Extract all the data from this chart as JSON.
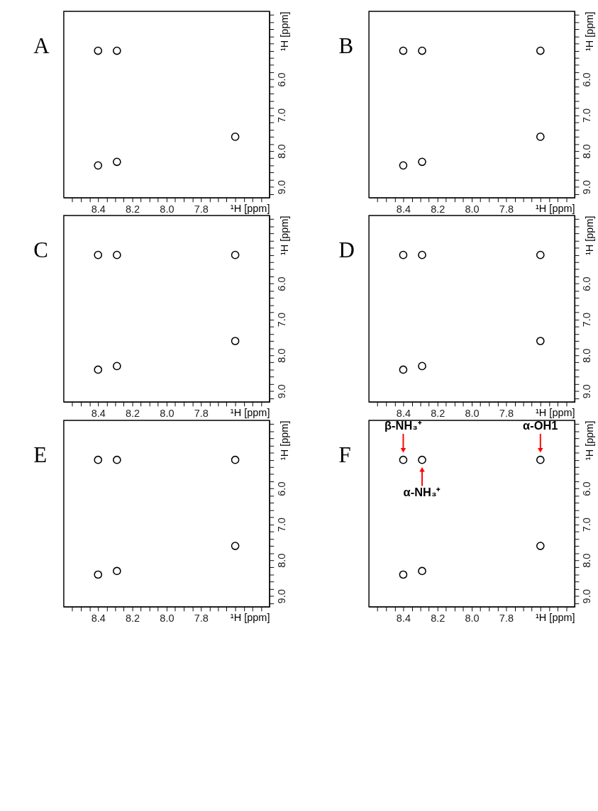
{
  "chart_data": [
    {
      "type": "scatter",
      "title": "A",
      "xlabel": "¹H [ppm]",
      "ylabel": "¹H [ppm]",
      "marker": "circle",
      "grid": false,
      "legend": false,
      "xlim": [
        8.6,
        7.4
      ],
      "ylim": [
        9.3,
        4.1
      ],
      "xticks": [
        {
          "value": 8.55,
          "label": null
        },
        {
          "value": 8.5,
          "label": null
        },
        {
          "value": 8.45,
          "label": null
        },
        8.4,
        {
          "value": 8.35,
          "label": null
        },
        {
          "value": 8.3,
          "label": null
        },
        {
          "value": 8.25,
          "label": null
        },
        8.2,
        {
          "value": 8.15,
          "label": null
        },
        {
          "value": 8.1,
          "label": null
        },
        {
          "value": 8.05,
          "label": null
        },
        {
          "value": 8,
          "label": "8.0"
        },
        {
          "value": 7.95,
          "label": null
        },
        {
          "value": 7.9,
          "label": null
        },
        {
          "value": 7.85,
          "label": null
        },
        7.8,
        {
          "value": 7.75,
          "label": null
        },
        {
          "value": 7.7,
          "label": null
        },
        {
          "value": 7.65,
          "label": null
        },
        {
          "value": 7.6,
          "label": null
        },
        {
          "value": 7.55,
          "label": null
        },
        {
          "value": 7.5,
          "label": null
        },
        {
          "value": 7.45,
          "label": null
        }
      ],
      "yticks": [
        {
          "value": 4.2,
          "label": null
        },
        {
          "value": 4.4,
          "label": null
        },
        {
          "value": 4.6,
          "label": null
        },
        {
          "value": 4.8,
          "label": null
        },
        {
          "value": 5,
          "label": null
        },
        {
          "value": 5.2,
          "label": null
        },
        {
          "value": 5.4,
          "label": null
        },
        {
          "value": 5.6,
          "label": null
        },
        {
          "value": 5.8,
          "label": null
        },
        {
          "value": 6,
          "label": "6.0"
        },
        {
          "value": 6.2,
          "label": null
        },
        {
          "value": 6.4,
          "label": null
        },
        {
          "value": 6.6,
          "label": null
        },
        {
          "value": 6.8,
          "label": null
        },
        {
          "value": 7,
          "label": "7.0"
        },
        {
          "value": 7.2,
          "label": null
        },
        {
          "value": 7.4,
          "label": null
        },
        {
          "value": 7.6,
          "label": null
        },
        {
          "value": 7.8,
          "label": null
        },
        {
          "value": 8,
          "label": "8.0"
        },
        {
          "value": 8.2,
          "label": null
        },
        {
          "value": 8.4,
          "label": null
        },
        {
          "value": 8.6,
          "label": null
        },
        {
          "value": 8.8,
          "label": null
        },
        {
          "value": 9,
          "label": "9.0"
        },
        {
          "value": 9.2,
          "label": null
        }
      ],
      "series": [
        {
          "color": "#000000",
          "x": [
            8.4,
            8.29,
            7.6,
            8.4,
            8.29
          ],
          "values": [
            5.2,
            5.2,
            7.6,
            8.4,
            8.3
          ]
        }
      ]
    },
    {
      "type": "scatter",
      "title": "B",
      "xlabel": "¹H [ppm]",
      "ylabel": "¹H [ppm]",
      "marker": "circle",
      "grid": false,
      "legend": false,
      "xlim": [
        8.6,
        7.4
      ],
      "ylim": [
        9.3,
        4.1
      ],
      "xticks": [
        {
          "value": 8.55,
          "label": null
        },
        {
          "value": 8.5,
          "label": null
        },
        {
          "value": 8.45,
          "label": null
        },
        8.4,
        {
          "value": 8.35,
          "label": null
        },
        {
          "value": 8.3,
          "label": null
        },
        {
          "value": 8.25,
          "label": null
        },
        8.2,
        {
          "value": 8.15,
          "label": null
        },
        {
          "value": 8.1,
          "label": null
        },
        {
          "value": 8.05,
          "label": null
        },
        {
          "value": 8,
          "label": "8.0"
        },
        {
          "value": 7.95,
          "label": null
        },
        {
          "value": 7.9,
          "label": null
        },
        {
          "value": 7.85,
          "label": null
        },
        7.8,
        {
          "value": 7.75,
          "label": null
        },
        {
          "value": 7.7,
          "label": null
        },
        {
          "value": 7.65,
          "label": null
        },
        {
          "value": 7.6,
          "label": null
        },
        {
          "value": 7.55,
          "label": null
        },
        {
          "value": 7.5,
          "label": null
        },
        {
          "value": 7.45,
          "label": null
        }
      ],
      "yticks": [
        {
          "value": 4.2,
          "label": null
        },
        {
          "value": 4.4,
          "label": null
        },
        {
          "value": 4.6,
          "label": null
        },
        {
          "value": 4.8,
          "label": null
        },
        {
          "value": 5,
          "label": null
        },
        {
          "value": 5.2,
          "label": null
        },
        {
          "value": 5.4,
          "label": null
        },
        {
          "value": 5.6,
          "label": null
        },
        {
          "value": 5.8,
          "label": null
        },
        {
          "value": 6,
          "label": "6.0"
        },
        {
          "value": 6.2,
          "label": null
        },
        {
          "value": 6.4,
          "label": null
        },
        {
          "value": 6.6,
          "label": null
        },
        {
          "value": 6.8,
          "label": null
        },
        {
          "value": 7,
          "label": "7.0"
        },
        {
          "value": 7.2,
          "label": null
        },
        {
          "value": 7.4,
          "label": null
        },
        {
          "value": 7.6,
          "label": null
        },
        {
          "value": 7.8,
          "label": null
        },
        {
          "value": 8,
          "label": "8.0"
        },
        {
          "value": 8.2,
          "label": null
        },
        {
          "value": 8.4,
          "label": null
        },
        {
          "value": 8.6,
          "label": null
        },
        {
          "value": 8.8,
          "label": null
        },
        {
          "value": 9,
          "label": "9.0"
        },
        {
          "value": 9.2,
          "label": null
        }
      ],
      "series": [
        {
          "color": "#000000",
          "x": [
            8.4,
            8.29,
            7.6,
            7.6,
            8.4,
            8.29
          ],
          "values": [
            5.2,
            5.2,
            5.2,
            7.6,
            8.4,
            8.3
          ]
        }
      ]
    },
    {
      "type": "scatter",
      "title": "C",
      "xlabel": "¹H [ppm]",
      "ylabel": "¹H [ppm]",
      "marker": "circle",
      "grid": false,
      "legend": false,
      "xlim": [
        8.6,
        7.4
      ],
      "ylim": [
        9.3,
        4.1
      ],
      "xticks": [
        {
          "value": 8.55,
          "label": null
        },
        {
          "value": 8.5,
          "label": null
        },
        {
          "value": 8.45,
          "label": null
        },
        8.4,
        {
          "value": 8.35,
          "label": null
        },
        {
          "value": 8.3,
          "label": null
        },
        {
          "value": 8.25,
          "label": null
        },
        8.2,
        {
          "value": 8.15,
          "label": null
        },
        {
          "value": 8.1,
          "label": null
        },
        {
          "value": 8.05,
          "label": null
        },
        {
          "value": 8,
          "label": "8.0"
        },
        {
          "value": 7.95,
          "label": null
        },
        {
          "value": 7.9,
          "label": null
        },
        {
          "value": 7.85,
          "label": null
        },
        7.8,
        {
          "value": 7.75,
          "label": null
        },
        {
          "value": 7.7,
          "label": null
        },
        {
          "value": 7.65,
          "label": null
        },
        {
          "value": 7.6,
          "label": null
        },
        {
          "value": 7.55,
          "label": null
        },
        {
          "value": 7.5,
          "label": null
        },
        {
          "value": 7.45,
          "label": null
        }
      ],
      "yticks": [
        {
          "value": 4.2,
          "label": null
        },
        {
          "value": 4.4,
          "label": null
        },
        {
          "value": 4.6,
          "label": null
        },
        {
          "value": 4.8,
          "label": null
        },
        {
          "value": 5,
          "label": null
        },
        {
          "value": 5.2,
          "label": null
        },
        {
          "value": 5.4,
          "label": null
        },
        {
          "value": 5.6,
          "label": null
        },
        {
          "value": 5.8,
          "label": null
        },
        {
          "value": 6,
          "label": "6.0"
        },
        {
          "value": 6.2,
          "label": null
        },
        {
          "value": 6.4,
          "label": null
        },
        {
          "value": 6.6,
          "label": null
        },
        {
          "value": 6.8,
          "label": null
        },
        {
          "value": 7,
          "label": "7.0"
        },
        {
          "value": 7.2,
          "label": null
        },
        {
          "value": 7.4,
          "label": null
        },
        {
          "value": 7.6,
          "label": null
        },
        {
          "value": 7.8,
          "label": null
        },
        {
          "value": 8,
          "label": "8.0"
        },
        {
          "value": 8.2,
          "label": null
        },
        {
          "value": 8.4,
          "label": null
        },
        {
          "value": 8.6,
          "label": null
        },
        {
          "value": 8.8,
          "label": null
        },
        {
          "value": 9,
          "label": "9.0"
        },
        {
          "value": 9.2,
          "label": null
        }
      ],
      "series": [
        {
          "color": "#000000",
          "x": [
            8.4,
            8.29,
            7.6,
            7.6,
            8.4,
            8.29
          ],
          "values": [
            5.2,
            5.2,
            5.2,
            7.6,
            8.4,
            8.3
          ]
        }
      ]
    },
    {
      "type": "scatter",
      "title": "D",
      "xlabel": "¹H [ppm]",
      "ylabel": "¹H [ppm]",
      "marker": "circle",
      "grid": false,
      "legend": false,
      "xlim": [
        8.6,
        7.4
      ],
      "ylim": [
        9.3,
        4.1
      ],
      "xticks": [
        {
          "value": 8.55,
          "label": null
        },
        {
          "value": 8.5,
          "label": null
        },
        {
          "value": 8.45,
          "label": null
        },
        8.4,
        {
          "value": 8.35,
          "label": null
        },
        {
          "value": 8.3,
          "label": null
        },
        {
          "value": 8.25,
          "label": null
        },
        8.2,
        {
          "value": 8.15,
          "label": null
        },
        {
          "value": 8.1,
          "label": null
        },
        {
          "value": 8.05,
          "label": null
        },
        {
          "value": 8,
          "label": "8.0"
        },
        {
          "value": 7.95,
          "label": null
        },
        {
          "value": 7.9,
          "label": null
        },
        {
          "value": 7.85,
          "label": null
        },
        7.8,
        {
          "value": 7.75,
          "label": null
        },
        {
          "value": 7.7,
          "label": null
        },
        {
          "value": 7.65,
          "label": null
        },
        {
          "value": 7.6,
          "label": null
        },
        {
          "value": 7.55,
          "label": null
        },
        {
          "value": 7.5,
          "label": null
        },
        {
          "value": 7.45,
          "label": null
        }
      ],
      "yticks": [
        {
          "value": 4.2,
          "label": null
        },
        {
          "value": 4.4,
          "label": null
        },
        {
          "value": 4.6,
          "label": null
        },
        {
          "value": 4.8,
          "label": null
        },
        {
          "value": 5,
          "label": null
        },
        {
          "value": 5.2,
          "label": null
        },
        {
          "value": 5.4,
          "label": null
        },
        {
          "value": 5.6,
          "label": null
        },
        {
          "value": 5.8,
          "label": null
        },
        {
          "value": 6,
          "label": "6.0"
        },
        {
          "value": 6.2,
          "label": null
        },
        {
          "value": 6.4,
          "label": null
        },
        {
          "value": 6.6,
          "label": null
        },
        {
          "value": 6.8,
          "label": null
        },
        {
          "value": 7,
          "label": "7.0"
        },
        {
          "value": 7.2,
          "label": null
        },
        {
          "value": 7.4,
          "label": null
        },
        {
          "value": 7.6,
          "label": null
        },
        {
          "value": 7.8,
          "label": null
        },
        {
          "value": 8,
          "label": "8.0"
        },
        {
          "value": 8.2,
          "label": null
        },
        {
          "value": 8.4,
          "label": null
        },
        {
          "value": 8.6,
          "label": null
        },
        {
          "value": 8.8,
          "label": null
        },
        {
          "value": 9,
          "label": "9.0"
        },
        {
          "value": 9.2,
          "label": null
        }
      ],
      "series": [
        {
          "color": "#000000",
          "x": [
            8.4,
            8.29,
            7.6,
            7.6,
            8.4,
            8.29
          ],
          "values": [
            5.2,
            5.2,
            5.2,
            7.6,
            8.4,
            8.3
          ]
        }
      ]
    },
    {
      "type": "scatter",
      "title": "E",
      "xlabel": "¹H [ppm]",
      "ylabel": "¹H [ppm]",
      "marker": "circle",
      "grid": false,
      "legend": false,
      "xlim": [
        8.6,
        7.4
      ],
      "ylim": [
        9.3,
        4.1
      ],
      "xticks": [
        {
          "value": 8.55,
          "label": null
        },
        {
          "value": 8.5,
          "label": null
        },
        {
          "value": 8.45,
          "label": null
        },
        8.4,
        {
          "value": 8.35,
          "label": null
        },
        {
          "value": 8.3,
          "label": null
        },
        {
          "value": 8.25,
          "label": null
        },
        8.2,
        {
          "value": 8.15,
          "label": null
        },
        {
          "value": 8.1,
          "label": null
        },
        {
          "value": 8.05,
          "label": null
        },
        {
          "value": 8,
          "label": "8.0"
        },
        {
          "value": 7.95,
          "label": null
        },
        {
          "value": 7.9,
          "label": null
        },
        {
          "value": 7.85,
          "label": null
        },
        7.8,
        {
          "value": 7.75,
          "label": null
        },
        {
          "value": 7.7,
          "label": null
        },
        {
          "value": 7.65,
          "label": null
        },
        {
          "value": 7.6,
          "label": null
        },
        {
          "value": 7.55,
          "label": null
        },
        {
          "value": 7.5,
          "label": null
        },
        {
          "value": 7.45,
          "label": null
        }
      ],
      "yticks": [
        {
          "value": 4.2,
          "label": null
        },
        {
          "value": 4.4,
          "label": null
        },
        {
          "value": 4.6,
          "label": null
        },
        {
          "value": 4.8,
          "label": null
        },
        {
          "value": 5,
          "label": null
        },
        {
          "value": 5.2,
          "label": null
        },
        {
          "value": 5.4,
          "label": null
        },
        {
          "value": 5.6,
          "label": null
        },
        {
          "value": 5.8,
          "label": null
        },
        {
          "value": 6,
          "label": "6.0"
        },
        {
          "value": 6.2,
          "label": null
        },
        {
          "value": 6.4,
          "label": null
        },
        {
          "value": 6.6,
          "label": null
        },
        {
          "value": 6.8,
          "label": null
        },
        {
          "value": 7,
          "label": "7.0"
        },
        {
          "value": 7.2,
          "label": null
        },
        {
          "value": 7.4,
          "label": null
        },
        {
          "value": 7.6,
          "label": null
        },
        {
          "value": 7.8,
          "label": null
        },
        {
          "value": 8,
          "label": "8.0"
        },
        {
          "value": 8.2,
          "label": null
        },
        {
          "value": 8.4,
          "label": null
        },
        {
          "value": 8.6,
          "label": null
        },
        {
          "value": 8.8,
          "label": null
        },
        {
          "value": 9,
          "label": "9.0"
        },
        {
          "value": 9.2,
          "label": null
        }
      ],
      "series": [
        {
          "color": "#000000",
          "x": [
            8.4,
            8.29,
            7.6,
            7.6,
            8.4,
            8.29
          ],
          "values": [
            5.2,
            5.2,
            5.2,
            7.6,
            8.4,
            8.3
          ]
        }
      ]
    },
    {
      "type": "scatter",
      "title": "F",
      "xlabel": "¹H [ppm]",
      "ylabel": "¹H [ppm]",
      "marker": "circle",
      "grid": false,
      "legend": false,
      "xlim": [
        8.6,
        7.4
      ],
      "ylim": [
        9.3,
        4.1
      ],
      "xticks": [
        {
          "value": 8.55,
          "label": null
        },
        {
          "value": 8.5,
          "label": null
        },
        {
          "value": 8.45,
          "label": null
        },
        8.4,
        {
          "value": 8.35,
          "label": null
        },
        {
          "value": 8.3,
          "label": null
        },
        {
          "value": 8.25,
          "label": null
        },
        8.2,
        {
          "value": 8.15,
          "label": null
        },
        {
          "value": 8.1,
          "label": null
        },
        {
          "value": 8.05,
          "label": null
        },
        {
          "value": 8,
          "label": "8.0"
        },
        {
          "value": 7.95,
          "label": null
        },
        {
          "value": 7.9,
          "label": null
        },
        {
          "value": 7.85,
          "label": null
        },
        7.8,
        {
          "value": 7.75,
          "label": null
        },
        {
          "value": 7.7,
          "label": null
        },
        {
          "value": 7.65,
          "label": null
        },
        {
          "value": 7.6,
          "label": null
        },
        {
          "value": 7.55,
          "label": null
        },
        {
          "value": 7.5,
          "label": null
        },
        {
          "value": 7.45,
          "label": null
        }
      ],
      "yticks": [
        {
          "value": 4.2,
          "label": null
        },
        {
          "value": 4.4,
          "label": null
        },
        {
          "value": 4.6,
          "label": null
        },
        {
          "value": 4.8,
          "label": null
        },
        {
          "value": 5,
          "label": null
        },
        {
          "value": 5.2,
          "label": null
        },
        {
          "value": 5.4,
          "label": null
        },
        {
          "value": 5.6,
          "label": null
        },
        {
          "value": 5.8,
          "label": null
        },
        {
          "value": 6,
          "label": "6.0"
        },
        {
          "value": 6.2,
          "label": null
        },
        {
          "value": 6.4,
          "label": null
        },
        {
          "value": 6.6,
          "label": null
        },
        {
          "value": 6.8,
          "label": null
        },
        {
          "value": 7,
          "label": "7.0"
        },
        {
          "value": 7.2,
          "label": null
        },
        {
          "value": 7.4,
          "label": null
        },
        {
          "value": 7.6,
          "label": null
        },
        {
          "value": 7.8,
          "label": null
        },
        {
          "value": 8,
          "label": "8.0"
        },
        {
          "value": 8.2,
          "label": null
        },
        {
          "value": 8.4,
          "label": null
        },
        {
          "value": 8.6,
          "label": null
        },
        {
          "value": 8.8,
          "label": null
        },
        {
          "value": 9,
          "label": "9.0"
        },
        {
          "value": 9.2,
          "label": null
        }
      ],
      "series": [
        {
          "color": "#000000",
          "x": [
            8.4,
            8.29,
            7.6,
            7.6,
            8.4,
            8.29
          ],
          "values": [
            5.2,
            5.2,
            5.2,
            7.6,
            8.4,
            8.3
          ]
        }
      ],
      "annotations": [
        {
          "text": "β-NH₃⁺",
          "x": 8.4,
          "y": 5.2
        },
        {
          "text": "α-NH₃⁺",
          "x": 8.29,
          "y": 5.2
        },
        {
          "text": "α-OH1",
          "x": 7.6,
          "y": 5.2
        }
      ]
    }
  ]
}
